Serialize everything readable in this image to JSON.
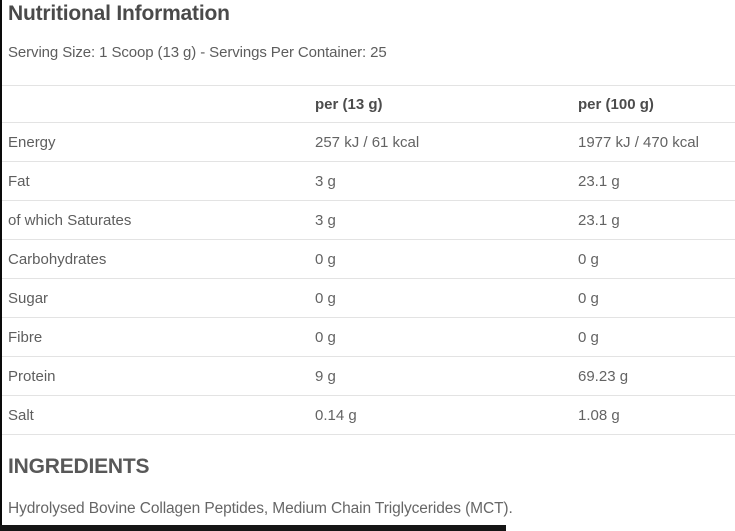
{
  "header": {
    "title": "Nutritional Information",
    "serving_info": "Serving Size: 1 Scoop (13 g) - Servings Per Container: 25"
  },
  "table": {
    "col_per_serving": "per (13 g)",
    "col_per_100g": "per (100 g)",
    "rows": [
      {
        "label": "Energy",
        "per_serving": "257 kJ / 61 kcal",
        "per_100g": "1977 kJ / 470 kcal"
      },
      {
        "label": "Fat",
        "per_serving": "3 g",
        "per_100g": "23.1 g"
      },
      {
        "label": "of which Saturates",
        "per_serving": "3 g",
        "per_100g": "23.1 g"
      },
      {
        "label": "Carbohydrates",
        "per_serving": "0 g",
        "per_100g": "0 g"
      },
      {
        "label": "Sugar",
        "per_serving": "0 g",
        "per_100g": "0 g"
      },
      {
        "label": "Fibre",
        "per_serving": "0 g",
        "per_100g": "0 g"
      },
      {
        "label": "Protein",
        "per_serving": "9 g",
        "per_100g": "69.23 g"
      },
      {
        "label": "Salt",
        "per_serving": "0.14 g",
        "per_100g": "1.08 g"
      }
    ]
  },
  "ingredients": {
    "heading": "INGREDIENTS",
    "text": "Hydrolysed Bovine Collagen Peptides, Medium Chain Triglycerides (MCT)."
  },
  "colors": {
    "heading_text": "#4a4a4a",
    "body_text": "#616161",
    "divider": "#e3e3e3",
    "edge_border": "#0a0a0a",
    "background": "#ffffff"
  }
}
